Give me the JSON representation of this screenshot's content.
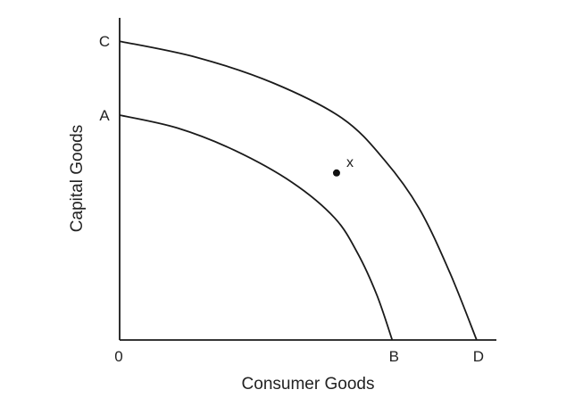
{
  "chart_data": {
    "type": "line",
    "title": "",
    "xlabel": "Consumer Goods",
    "ylabel": "Capital Goods",
    "origin_label": "0",
    "xlim": [
      0,
      10
    ],
    "ylim": [
      0,
      10
    ],
    "grid": false,
    "legend": "none",
    "y_axis_labels": [
      {
        "label": "C",
        "value": 9.3
      },
      {
        "label": "A",
        "value": 7.0
      }
    ],
    "x_axis_labels": [
      {
        "label": "B",
        "value": 7.1
      },
      {
        "label": "D",
        "value": 9.3
      }
    ],
    "series": [
      {
        "x": [
          0,
          1.5,
          3.0,
          4.5,
          5.6,
          6.2,
          6.7,
          7.1
        ],
        "y": [
          7.0,
          6.6,
          5.9,
          4.9,
          3.8,
          2.7,
          1.4,
          0
        ]
      },
      {
        "x": [
          0,
          2.0,
          4.0,
          5.8,
          6.9,
          7.8,
          8.6,
          9.3
        ],
        "y": [
          9.3,
          8.8,
          8.0,
          6.9,
          5.6,
          4.1,
          2.1,
          0
        ]
      }
    ],
    "points": [
      {
        "label": "x",
        "x": 5.65,
        "y": 5.2
      }
    ]
  }
}
